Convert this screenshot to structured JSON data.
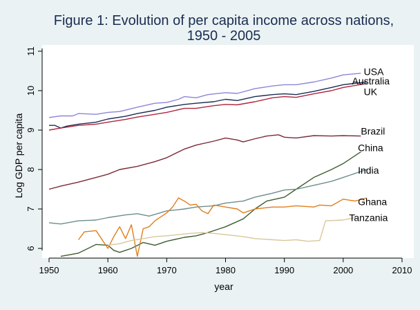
{
  "chart_data": {
    "type": "line",
    "title": "Figure 1: Evolution of per capita income across nations,",
    "subtitle": "1950 - 2005",
    "xlabel": "year",
    "ylabel": "Log GDP per capita",
    "xlim": [
      1950,
      2010
    ],
    "ylim": [
      5.75,
      11.25
    ],
    "xticks": [
      1950,
      1960,
      1970,
      1980,
      1990,
      2000,
      2010
    ],
    "yticks": [
      6,
      7,
      8,
      9,
      10,
      11
    ],
    "grid": false,
    "legend": "none (series labeled at line ends)",
    "series": [
      {
        "name": "USA",
        "color": "#8c86d6",
        "label_xy": [
          2003.5,
          10.48
        ],
        "points": [
          [
            1950,
            9.32
          ],
          [
            1952,
            9.36
          ],
          [
            1954,
            9.36
          ],
          [
            1955,
            9.42
          ],
          [
            1958,
            9.4
          ],
          [
            1960,
            9.45
          ],
          [
            1962,
            9.47
          ],
          [
            1965,
            9.58
          ],
          [
            1968,
            9.68
          ],
          [
            1970,
            9.7
          ],
          [
            1972,
            9.78
          ],
          [
            1973,
            9.85
          ],
          [
            1975,
            9.82
          ],
          [
            1977,
            9.9
          ],
          [
            1980,
            9.95
          ],
          [
            1982,
            9.93
          ],
          [
            1985,
            10.05
          ],
          [
            1988,
            10.12
          ],
          [
            1990,
            10.15
          ],
          [
            1992,
            10.15
          ],
          [
            1995,
            10.22
          ],
          [
            1998,
            10.32
          ],
          [
            2000,
            10.4
          ],
          [
            2003,
            10.44
          ]
        ]
      },
      {
        "name": "Australia",
        "color": "#1a2c52",
        "label_xy": [
          2001.5,
          10.25
        ],
        "points": [
          [
            1950,
            9.12
          ],
          [
            1951,
            9.12
          ],
          [
            1952,
            9.05
          ],
          [
            1953,
            9.1
          ],
          [
            1955,
            9.15
          ],
          [
            1958,
            9.2
          ],
          [
            1960,
            9.28
          ],
          [
            1963,
            9.35
          ],
          [
            1965,
            9.42
          ],
          [
            1968,
            9.5
          ],
          [
            1970,
            9.58
          ],
          [
            1973,
            9.65
          ],
          [
            1975,
            9.68
          ],
          [
            1978,
            9.72
          ],
          [
            1980,
            9.78
          ],
          [
            1982,
            9.75
          ],
          [
            1985,
            9.85
          ],
          [
            1988,
            9.9
          ],
          [
            1990,
            9.92
          ],
          [
            1992,
            9.9
          ],
          [
            1995,
            9.98
          ],
          [
            1998,
            10.08
          ],
          [
            2000,
            10.15
          ],
          [
            2004,
            10.22
          ]
        ]
      },
      {
        "name": "UK",
        "color": "#b0243e",
        "label_xy": [
          2003.5,
          9.97
        ],
        "points": [
          [
            1950,
            9.0
          ],
          [
            1952,
            9.05
          ],
          [
            1955,
            9.12
          ],
          [
            1958,
            9.15
          ],
          [
            1960,
            9.2
          ],
          [
            1963,
            9.27
          ],
          [
            1965,
            9.33
          ],
          [
            1968,
            9.4
          ],
          [
            1970,
            9.45
          ],
          [
            1973,
            9.55
          ],
          [
            1975,
            9.55
          ],
          [
            1978,
            9.62
          ],
          [
            1980,
            9.65
          ],
          [
            1982,
            9.64
          ],
          [
            1985,
            9.72
          ],
          [
            1988,
            9.82
          ],
          [
            1990,
            9.85
          ],
          [
            1992,
            9.83
          ],
          [
            1995,
            9.92
          ],
          [
            1998,
            10.0
          ],
          [
            2000,
            10.08
          ],
          [
            2004,
            10.18
          ]
        ]
      },
      {
        "name": "Brazil",
        "color": "#7a2a34",
        "label_xy": [
          2003,
          8.97
        ],
        "points": [
          [
            1950,
            7.5
          ],
          [
            1952,
            7.58
          ],
          [
            1955,
            7.68
          ],
          [
            1958,
            7.8
          ],
          [
            1960,
            7.88
          ],
          [
            1962,
            8.0
          ],
          [
            1965,
            8.08
          ],
          [
            1968,
            8.2
          ],
          [
            1970,
            8.3
          ],
          [
            1973,
            8.52
          ],
          [
            1975,
            8.62
          ],
          [
            1978,
            8.72
          ],
          [
            1980,
            8.8
          ],
          [
            1982,
            8.75
          ],
          [
            1983,
            8.7
          ],
          [
            1985,
            8.78
          ],
          [
            1987,
            8.85
          ],
          [
            1989,
            8.88
          ],
          [
            1990,
            8.82
          ],
          [
            1992,
            8.8
          ],
          [
            1995,
            8.86
          ],
          [
            1998,
            8.85
          ],
          [
            2000,
            8.86
          ],
          [
            2003,
            8.85
          ]
        ]
      },
      {
        "name": "China",
        "color": "#3d5c2e",
        "label_xy": [
          2002.5,
          8.55
        ],
        "points": [
          [
            1952,
            5.8
          ],
          [
            1955,
            5.88
          ],
          [
            1958,
            6.1
          ],
          [
            1960,
            6.08
          ],
          [
            1961,
            5.95
          ],
          [
            1962,
            5.9
          ],
          [
            1964,
            6.0
          ],
          [
            1966,
            6.15
          ],
          [
            1968,
            6.08
          ],
          [
            1970,
            6.18
          ],
          [
            1973,
            6.28
          ],
          [
            1975,
            6.32
          ],
          [
            1977,
            6.4
          ],
          [
            1979,
            6.5
          ],
          [
            1980,
            6.55
          ],
          [
            1983,
            6.75
          ],
          [
            1985,
            7.0
          ],
          [
            1987,
            7.2
          ],
          [
            1990,
            7.3
          ],
          [
            1992,
            7.5
          ],
          [
            1995,
            7.8
          ],
          [
            1998,
            8.0
          ],
          [
            2000,
            8.15
          ],
          [
            2003,
            8.45
          ]
        ]
      },
      {
        "name": "India",
        "color": "#6e8c8c",
        "label_xy": [
          2002.5,
          7.98
        ],
        "points": [
          [
            1950,
            6.65
          ],
          [
            1952,
            6.62
          ],
          [
            1955,
            6.7
          ],
          [
            1958,
            6.72
          ],
          [
            1960,
            6.78
          ],
          [
            1963,
            6.85
          ],
          [
            1965,
            6.88
          ],
          [
            1967,
            6.82
          ],
          [
            1970,
            6.95
          ],
          [
            1973,
            7.0
          ],
          [
            1975,
            7.05
          ],
          [
            1978,
            7.08
          ],
          [
            1980,
            7.15
          ],
          [
            1983,
            7.2
          ],
          [
            1985,
            7.3
          ],
          [
            1988,
            7.4
          ],
          [
            1990,
            7.48
          ],
          [
            1992,
            7.5
          ],
          [
            1995,
            7.6
          ],
          [
            1998,
            7.7
          ],
          [
            2000,
            7.8
          ],
          [
            2004,
            8.0
          ]
        ]
      },
      {
        "name": "Ghana",
        "color": "#e07d1c",
        "label_xy": [
          2002.5,
          7.18
        ],
        "points": [
          [
            1955,
            6.22
          ],
          [
            1956,
            6.42
          ],
          [
            1958,
            6.45
          ],
          [
            1960,
            6.0
          ],
          [
            1961,
            6.3
          ],
          [
            1962,
            6.55
          ],
          [
            1963,
            6.25
          ],
          [
            1964,
            6.6
          ],
          [
            1965,
            5.8
          ],
          [
            1966,
            6.5
          ],
          [
            1967,
            6.55
          ],
          [
            1968,
            6.7
          ],
          [
            1970,
            6.9
          ],
          [
            1971,
            7.05
          ],
          [
            1972,
            7.28
          ],
          [
            1973,
            7.2
          ],
          [
            1974,
            7.1
          ],
          [
            1975,
            7.12
          ],
          [
            1976,
            6.95
          ],
          [
            1977,
            6.88
          ],
          [
            1978,
            7.1
          ],
          [
            1980,
            7.05
          ],
          [
            1982,
            7.0
          ],
          [
            1983,
            6.9
          ],
          [
            1985,
            7.0
          ],
          [
            1988,
            7.05
          ],
          [
            1990,
            7.05
          ],
          [
            1992,
            7.08
          ],
          [
            1995,
            7.05
          ],
          [
            1996,
            7.1
          ],
          [
            1998,
            7.08
          ],
          [
            2000,
            7.25
          ],
          [
            2002,
            7.2
          ],
          [
            2004,
            7.28
          ]
        ]
      },
      {
        "name": "Tanzania",
        "color": "#d8c79a",
        "label_xy": [
          2001,
          6.78
        ],
        "points": [
          [
            1960,
            6.08
          ],
          [
            1962,
            6.12
          ],
          [
            1964,
            6.2
          ],
          [
            1966,
            6.25
          ],
          [
            1968,
            6.3
          ],
          [
            1970,
            6.32
          ],
          [
            1972,
            6.35
          ],
          [
            1974,
            6.38
          ],
          [
            1976,
            6.4
          ],
          [
            1978,
            6.38
          ],
          [
            1980,
            6.35
          ],
          [
            1983,
            6.3
          ],
          [
            1985,
            6.25
          ],
          [
            1988,
            6.22
          ],
          [
            1990,
            6.2
          ],
          [
            1992,
            6.22
          ],
          [
            1994,
            6.18
          ],
          [
            1996,
            6.2
          ],
          [
            1997,
            6.7
          ],
          [
            2000,
            6.72
          ],
          [
            2002,
            6.78
          ]
        ]
      }
    ]
  }
}
